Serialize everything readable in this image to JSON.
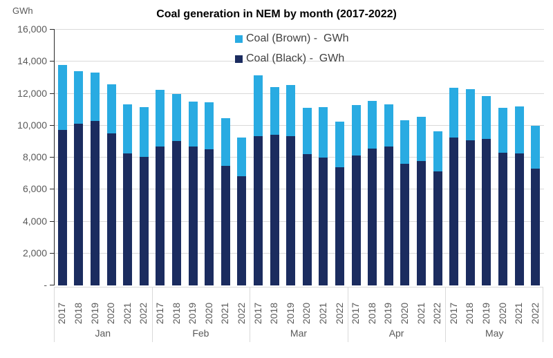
{
  "title": "Coal generation in NEM by month (2017-2022)",
  "y_axis": {
    "unit_label": "GWh",
    "max": 16000,
    "step": 2000,
    "tick_labels": [
      "16,000",
      "14,000",
      "12,000",
      "10,000",
      "8,000",
      "6,000",
      "4,000",
      "2,000",
      "-"
    ],
    "tick_values": [
      16000,
      14000,
      12000,
      10000,
      8000,
      6000,
      4000,
      2000,
      0
    ]
  },
  "legend": {
    "position": "top-center-overlay",
    "items": [
      {
        "label": "Coal (Brown) -  GWh",
        "color": "#29ABE2"
      },
      {
        "label": "Coal (Black) -  GWh",
        "color": "#1B2C5F"
      }
    ]
  },
  "colors": {
    "coal_brown": "#29ABE2",
    "coal_black": "#1B2C5F",
    "gridline": "#d9d9d9",
    "axis_line": "#262626",
    "axis_text": "#595959"
  },
  "chart_data": {
    "type": "bar",
    "stacked": true,
    "title": "Coal generation in NEM by month (2017-2022)",
    "ylabel": "GWh",
    "ylim": [
      0,
      16000
    ],
    "grid": true,
    "categories": [
      "Jan",
      "Feb",
      "Mar",
      "Apr",
      "May"
    ],
    "subcategories": [
      "2017",
      "2018",
      "2019",
      "2020",
      "2021",
      "2022"
    ],
    "series": [
      {
        "name": "Coal (Black) -  GWh",
        "color": "#1B2C5F",
        "values": {
          "Jan": [
            9750,
            10100,
            10300,
            9500,
            8250,
            8050
          ],
          "Feb": [
            8700,
            9050,
            8700,
            8500,
            7500,
            6850
          ],
          "Mar": [
            9350,
            9450,
            9350,
            8200,
            8000,
            7400
          ],
          "Apr": [
            8150,
            8550,
            8700,
            7600,
            7800,
            7150
          ],
          "May": [
            9250,
            9100,
            9150,
            8300,
            8250,
            7300
          ]
        }
      },
      {
        "name": "Coal (Brown) -  GWh",
        "color": "#29ABE2",
        "values": {
          "Jan": [
            4050,
            3300,
            3000,
            3100,
            3100,
            3100
          ],
          "Feb": [
            3550,
            2950,
            2800,
            2950,
            2950,
            2400
          ],
          "Mar": [
            3800,
            2950,
            3200,
            2900,
            3150,
            2850
          ],
          "Apr": [
            3150,
            3000,
            2650,
            2750,
            2750,
            2500
          ],
          "May": [
            3100,
            3200,
            2700,
            2800,
            2950,
            2700
          ]
        }
      }
    ]
  }
}
